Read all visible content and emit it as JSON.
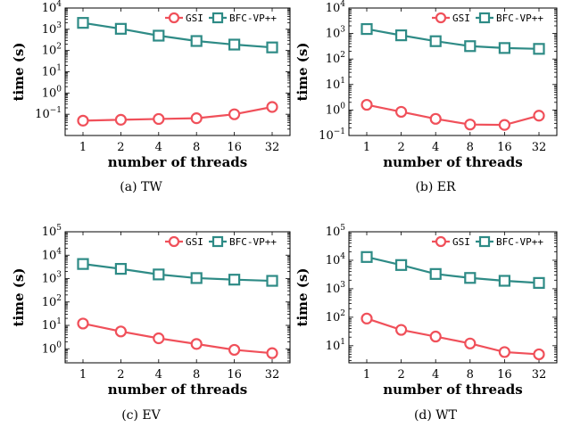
{
  "colors": {
    "gsi": "#f0505a",
    "bfc": "#2e8b86"
  },
  "chart_data": [
    {
      "type": "line",
      "caption": "(a) TW",
      "xlabel": "number of threads",
      "ylabel": "time (s)",
      "yscale": "log",
      "categories": [
        "1",
        "2",
        "4",
        "8",
        "16",
        "32"
      ],
      "ylim_exp": [
        -2,
        4
      ],
      "ytick_exps": [
        -1,
        0,
        1,
        2,
        3,
        4
      ],
      "legend": "top-right",
      "series": [
        {
          "name": "GSI",
          "color_key": "gsi",
          "marker": "circle",
          "values": [
            0.05,
            0.055,
            0.06,
            0.065,
            0.1,
            0.22
          ]
        },
        {
          "name": "BFC-VP++",
          "color_key": "bfc",
          "marker": "square",
          "values": [
            2000,
            1050,
            500,
            280,
            190,
            140
          ]
        }
      ]
    },
    {
      "type": "line",
      "caption": "(b) ER",
      "xlabel": "number of threads",
      "ylabel": "time (s)",
      "yscale": "log",
      "categories": [
        "1",
        "2",
        "4",
        "8",
        "16",
        "32"
      ],
      "ylim_exp": [
        -1,
        4
      ],
      "ytick_exps": [
        -1,
        0,
        1,
        2,
        3,
        4
      ],
      "legend": "top-right",
      "series": [
        {
          "name": "GSI",
          "color_key": "gsi",
          "marker": "circle",
          "values": [
            1.6,
            0.85,
            0.45,
            0.27,
            0.26,
            0.6
          ]
        },
        {
          "name": "BFC-VP++",
          "color_key": "bfc",
          "marker": "square",
          "values": [
            1500,
            850,
            500,
            320,
            270,
            250
          ]
        }
      ]
    },
    {
      "type": "line",
      "caption": "(c) EV",
      "xlabel": "number of threads",
      "ylabel": "time (s)",
      "yscale": "log",
      "categories": [
        "1",
        "2",
        "4",
        "8",
        "16",
        "32"
      ],
      "ylim_exp": [
        -0.6,
        5
      ],
      "ytick_exps": [
        0,
        1,
        2,
        3,
        4,
        5
      ],
      "legend": "top-right",
      "series": [
        {
          "name": "GSI",
          "color_key": "gsi",
          "marker": "circle",
          "values": [
            12,
            5.5,
            2.8,
            1.6,
            0.9,
            0.65
          ]
        },
        {
          "name": "BFC-VP++",
          "color_key": "bfc",
          "marker": "square",
          "values": [
            4200,
            2600,
            1500,
            1050,
            900,
            800
          ]
        }
      ]
    },
    {
      "type": "line",
      "caption": "(d) WT",
      "xlabel": "number of threads",
      "ylabel": "time (s)",
      "yscale": "log",
      "categories": [
        "1",
        "2",
        "4",
        "8",
        "16",
        "32"
      ],
      "ylim_exp": [
        0.4,
        5
      ],
      "ytick_exps": [
        1,
        2,
        3,
        4,
        5
      ],
      "legend": "top-right",
      "series": [
        {
          "name": "GSI",
          "color_key": "gsi",
          "marker": "circle",
          "values": [
            90,
            36,
            21,
            12,
            6,
            5
          ]
        },
        {
          "name": "BFC-VP++",
          "color_key": "bfc",
          "marker": "square",
          "values": [
            13000,
            6800,
            3300,
            2400,
            1900,
            1600
          ]
        }
      ]
    }
  ]
}
